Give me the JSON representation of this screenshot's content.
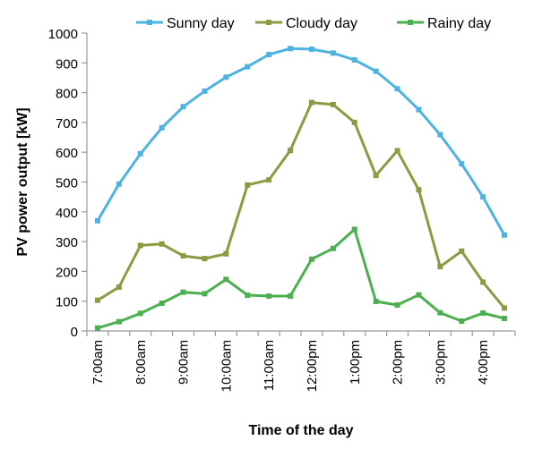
{
  "chart_data": {
    "type": "line",
    "title": "",
    "xlabel": "Time of the day",
    "ylabel": "PV power output [kW]",
    "ylim": [
      0,
      1000
    ],
    "yticks": [
      0,
      100,
      200,
      300,
      400,
      500,
      600,
      700,
      800,
      900,
      1000
    ],
    "grid": false,
    "legend_position": "top",
    "x": [
      "7:00am",
      "7:30am",
      "8:00am",
      "8:30am",
      "9:00am",
      "9:30am",
      "10:00am",
      "10:30am",
      "11:00am",
      "11:30am",
      "12:00pm",
      "12:30pm",
      "1:00pm",
      "1:30pm",
      "2:00pm",
      "2:30pm",
      "3:00pm",
      "3:30pm",
      "4:00pm",
      "4:30pm"
    ],
    "xtick_labels": [
      "7:00am",
      "8:00am",
      "9:00am",
      "10:00am",
      "11:00am",
      "12:00pm",
      "1:00pm",
      "2:00pm",
      "3:00pm",
      "4:00pm"
    ],
    "series": [
      {
        "name": "Sunny day",
        "color": "#4fb3e0",
        "values": [
          370,
          493,
          595,
          682,
          753,
          805,
          852,
          887,
          928,
          948,
          946,
          933,
          910,
          872,
          813,
          743,
          659,
          561,
          450,
          322
        ]
      },
      {
        "name": "Cloudy day",
        "color": "#8c9a42",
        "values": [
          103,
          147,
          287,
          292,
          252,
          243,
          259,
          490,
          507,
          606,
          767,
          760,
          700,
          522,
          605,
          474,
          216,
          268,
          164,
          77
        ]
      },
      {
        "name": "Rainy day",
        "color": "#4caf50",
        "values": [
          10,
          31,
          59,
          93,
          130,
          125,
          173,
          120,
          117,
          117,
          241,
          277,
          341,
          99,
          87,
          121,
          61,
          33,
          60,
          42
        ]
      }
    ]
  }
}
